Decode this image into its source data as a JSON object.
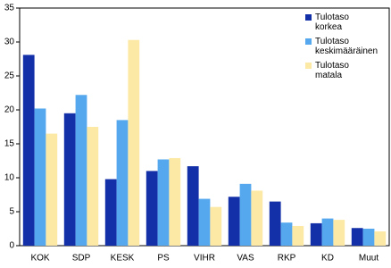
{
  "chart_data": {
    "type": "bar",
    "categories": [
      "KOK",
      "SDP",
      "KESK",
      "PS",
      "VIHR",
      "VAS",
      "RKP",
      "KD",
      "Muut"
    ],
    "series": [
      {
        "name": "Tulotaso korkea",
        "color": "#1430a8",
        "values": [
          28.1,
          19.5,
          9.8,
          11.0,
          11.7,
          7.2,
          6.5,
          3.3,
          2.6
        ]
      },
      {
        "name": "Tulotaso keskimääräinen",
        "color": "#55a8ee",
        "values": [
          20.2,
          22.2,
          18.5,
          12.7,
          6.9,
          9.1,
          3.4,
          4.0,
          2.5
        ]
      },
      {
        "name": "Tulotaso matala",
        "color": "#fde9a6",
        "values": [
          16.5,
          17.5,
          30.3,
          12.9,
          5.7,
          8.1,
          2.9,
          3.8,
          2.1
        ]
      }
    ],
    "ylim": [
      0,
      35
    ],
    "yticks": [
      0,
      5,
      10,
      15,
      20,
      25,
      30,
      35
    ],
    "legend": "top-right"
  }
}
